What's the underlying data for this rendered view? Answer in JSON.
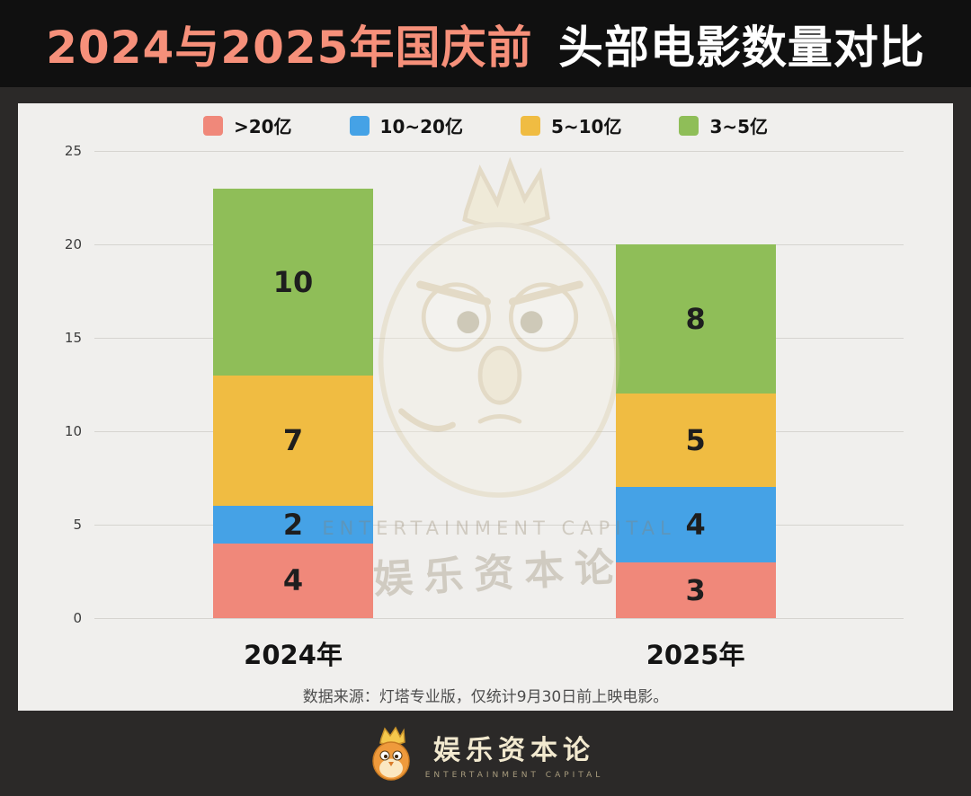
{
  "banner": {
    "title_highlight": "2024与2025年国庆前",
    "title_rest": "头部电影数量对比"
  },
  "chart_data": {
    "type": "bar",
    "stacked": true,
    "title": "2024与2025年国庆前头部电影数量对比",
    "categories": [
      "2024年",
      "2025年"
    ],
    "series": [
      {
        "name": ">20亿",
        "color": "#F0887A",
        "values": [
          4,
          3
        ]
      },
      {
        "name": "10~20亿",
        "color": "#45A2E6",
        "values": [
          2,
          4
        ]
      },
      {
        "name": "5~10亿",
        "color": "#F0BC42",
        "values": [
          7,
          5
        ]
      },
      {
        "name": "3~5亿",
        "color": "#8FBE58",
        "values": [
          10,
          8
        ]
      }
    ],
    "totals": [
      23,
      20
    ],
    "ylim": [
      0,
      25
    ],
    "yticks": [
      0,
      5,
      10,
      15,
      20,
      25
    ],
    "grid": true,
    "legend_position": "top"
  },
  "footnote": "数据来源：灯塔专业版，仅统计9月30日前上映电影。",
  "watermark": {
    "line1": "ENTERTAINMENT CAPITAL",
    "line2": "娱乐资本论"
  },
  "footer": {
    "brand": "娱乐资本论",
    "brand_sub": "ENTERTAINMENT CAPITAL"
  }
}
